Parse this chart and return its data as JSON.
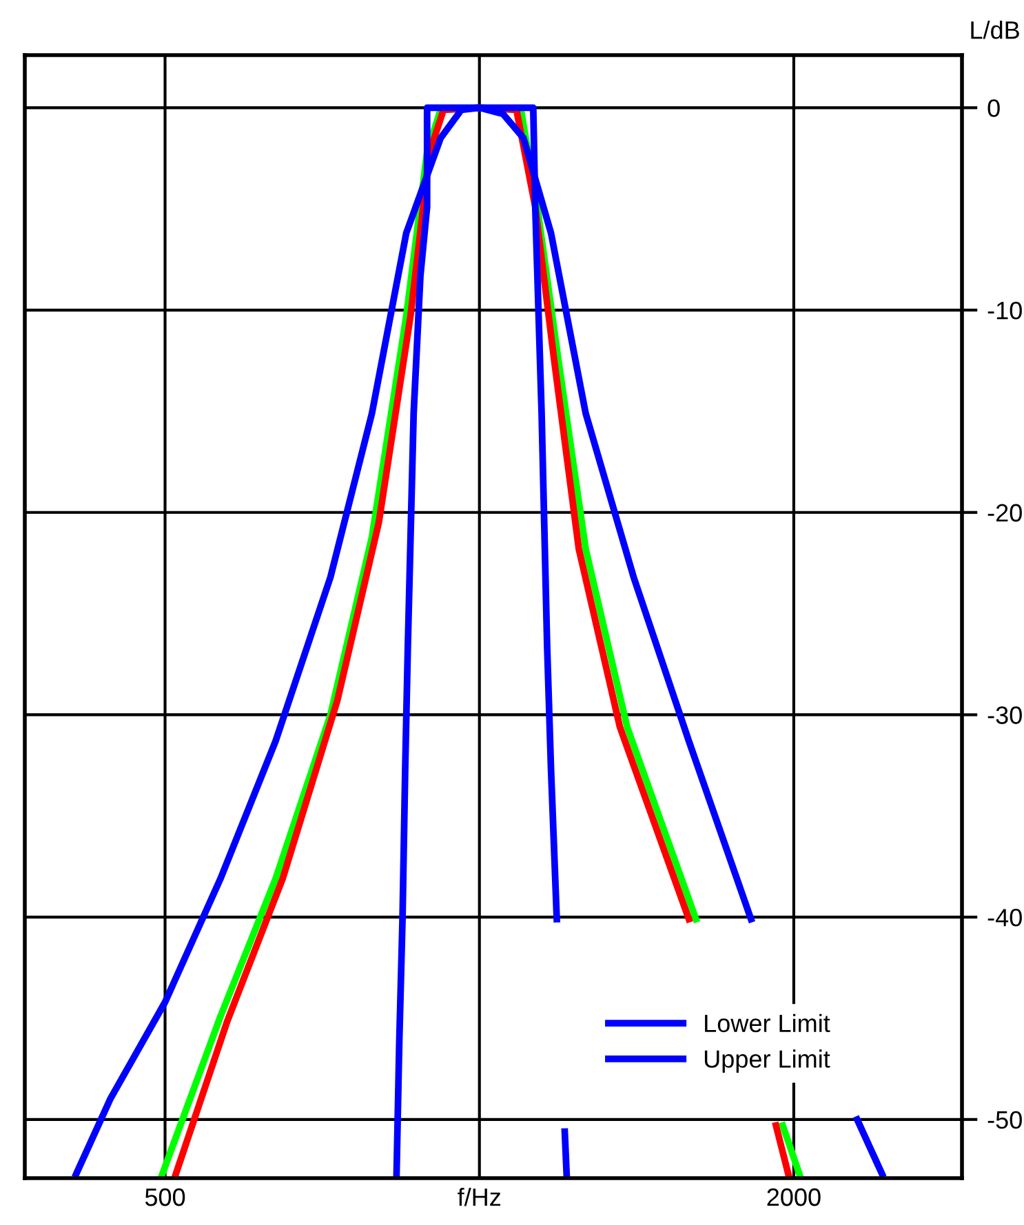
{
  "chart_data": {
    "type": "line",
    "ylabel": "L/dB",
    "log": "x",
    "xlim": [
      367,
      2898
    ],
    "ylim": [
      -52.9,
      2.6
    ],
    "xticks": [
      500,
      {
        "value": 1000,
        "label": "f/Hz"
      },
      2000
    ],
    "yticks": [
      0,
      -10,
      -20,
      -30,
      -40,
      -50
    ],
    "grid": true,
    "legend": "bottom right",
    "line_style": "solid",
    "marker": "none",
    "series": [
      {
        "color": "#00ff00",
        "x": [
          497,
          565,
          638,
          720,
          789,
          851,
          891,
          918,
          1000,
          1096,
          1136,
          1189,
          1264,
          1385,
          1612,
          null,
          1952,
          2025
        ],
        "values": [
          -52.7,
          -44.9,
          -38.1,
          -30,
          -21.2,
          -10.3,
          -2.2,
          -0.1,
          0,
          -0.1,
          -4.9,
          -12.3,
          -21.8,
          -30.6,
          -40.1,
          null,
          -50.3,
          -52.7
        ]
      },
      {
        "color": "#ff0000",
        "x": [
          512,
          573,
          648,
          731,
          801,
          859,
          896,
          924,
          1000,
          1085,
          1131,
          1178,
          1245,
          1363,
          1587,
          null,
          1923,
          1976
        ],
        "values": [
          -52.7,
          -45.2,
          -38.1,
          -29.3,
          -20.5,
          -10.3,
          -2.2,
          -0.1,
          0,
          -0.1,
          -4.9,
          -12.3,
          -21.8,
          -30.6,
          -40.1,
          null,
          -50.3,
          -52.7
        ]
      },
      {
        "name": "Lower Limit",
        "color": "#0000ff",
        "x": [
          833,
          838,
          844,
          849,
          854,
          865,
          878,
          891,
          891,
          1126,
          1131,
          1147,
          1161,
          1171,
          1186,
          null,
          1207,
          1212
        ],
        "values": [
          -52.7,
          -46.2,
          -40.1,
          -32.7,
          -26.6,
          -15.1,
          -8.3,
          -4.9,
          0,
          0,
          -4.9,
          -15.1,
          -26.6,
          -32.7,
          -40.1,
          null,
          -50.6,
          -52.7
        ]
      },
      {
        "name": "Upper Limit",
        "color": "#0000ff",
        "x": [
          411,
          443,
          500,
          565,
          638,
          720,
          789,
          851,
          918,
          961,
          1000,
          1053,
          1102,
          1171,
          1264,
          1405,
          1587,
          1820,
          null,
          2300,
          2430
        ],
        "values": [
          -52.7,
          -49,
          -44.2,
          -38.1,
          -31.3,
          -23.2,
          -15.1,
          -6.2,
          -1.5,
          -0.1,
          0,
          -0.3,
          -1.5,
          -6.2,
          -15.1,
          -23.2,
          -31.3,
          -40.1,
          null,
          -50,
          -52.7
        ]
      }
    ]
  }
}
